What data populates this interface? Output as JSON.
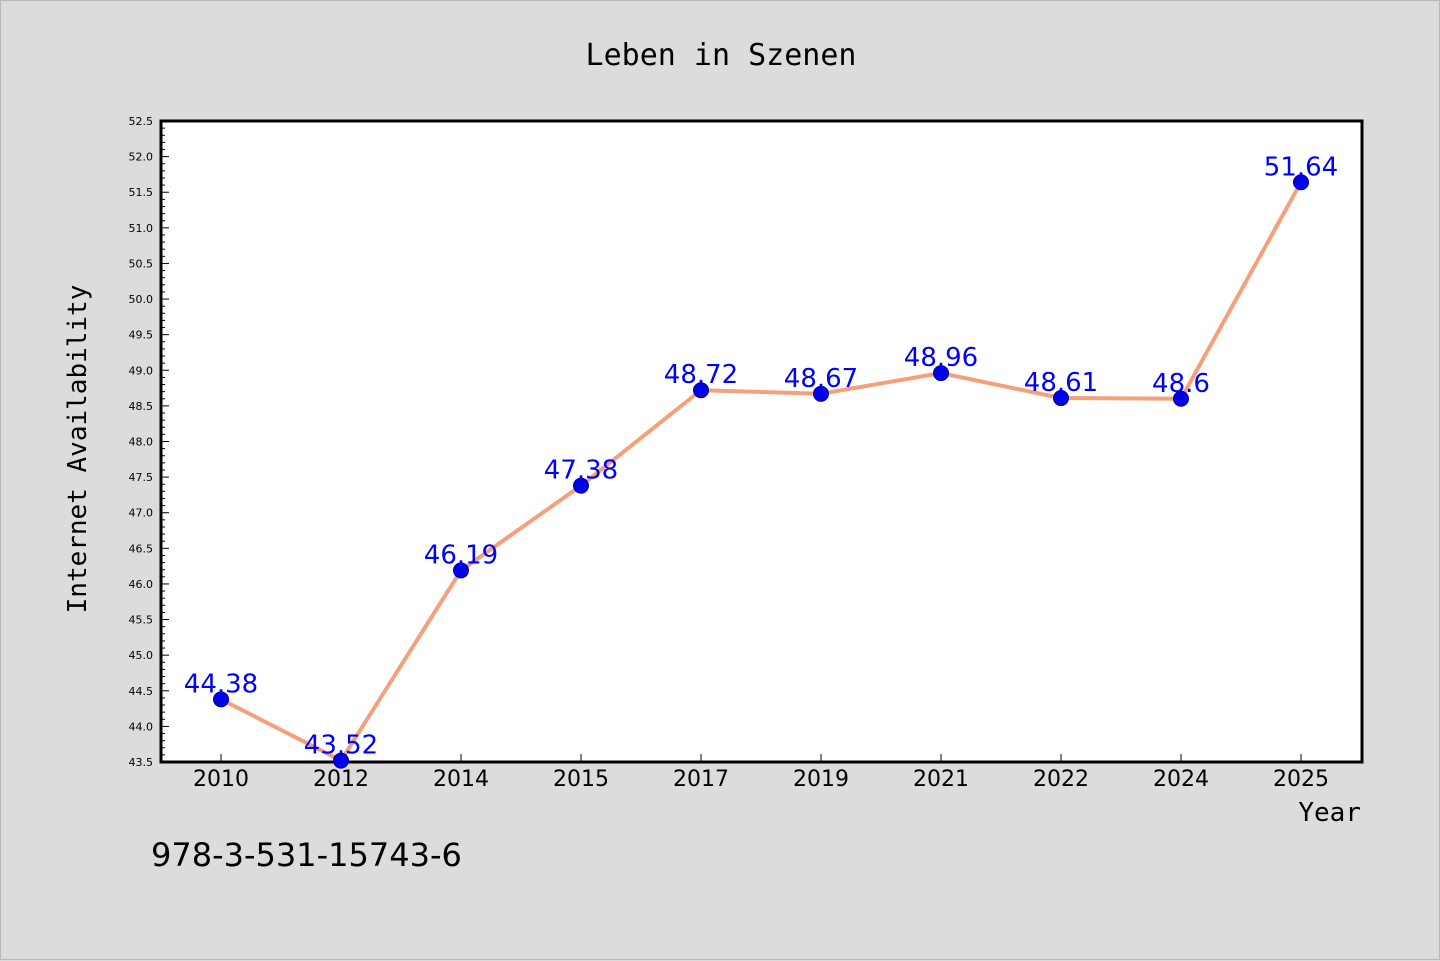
{
  "chart_data": {
    "type": "line",
    "title": "Leben in Szenen",
    "xlabel": "Year",
    "ylabel": "Internet Availability",
    "categories": [
      "2010",
      "2012",
      "2014",
      "2015",
      "2017",
      "2019",
      "2021",
      "2022",
      "2024",
      "2025"
    ],
    "series": [
      {
        "values": [
          44.38,
          43.52,
          46.19,
          47.38,
          48.72,
          48.67,
          48.96,
          48.61,
          48.6,
          51.64
        ],
        "labels": [
          "44.38",
          "43.52",
          "46.19",
          "47.38",
          "48.72",
          "48.67",
          "48.96",
          "48.61",
          "48.6",
          "51.64"
        ]
      }
    ],
    "ylim": [
      43.5,
      52.5
    ],
    "yticks": [
      "43.5",
      "44.0",
      "44.5",
      "45.0",
      "45.5",
      "46.0",
      "46.5",
      "47.0",
      "47.5",
      "48.0",
      "48.5",
      "49.0",
      "49.5",
      "50.0",
      "50.5",
      "51.0",
      "51.5",
      "52.0",
      "52.5"
    ],
    "grid": false,
    "line_color": "#f4a07c",
    "marker_color": "#0000ee",
    "label_color": "#0000ff"
  },
  "footer": {
    "isbn": "978-3-531-15743-6"
  }
}
